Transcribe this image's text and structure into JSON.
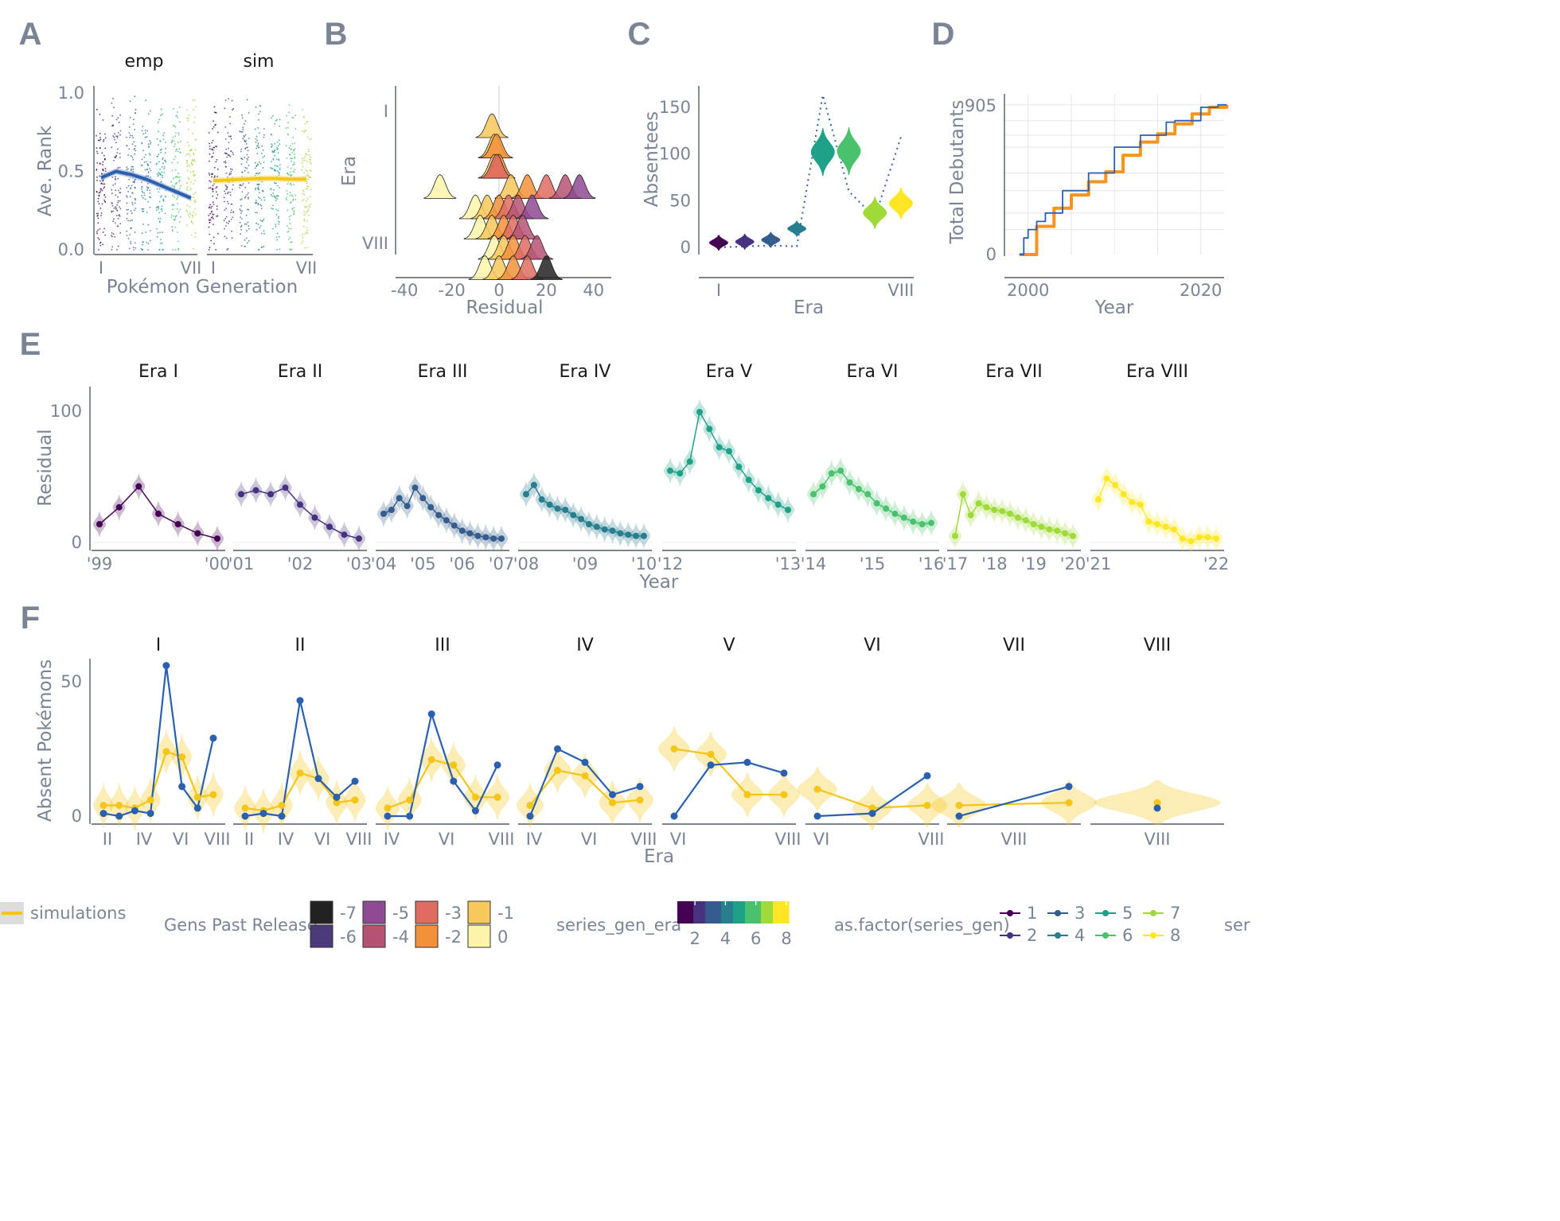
{
  "panels": {
    "A": "A",
    "B": "B",
    "C": "C",
    "D": "D",
    "E": "E",
    "F": "F"
  },
  "colors": {
    "era": [
      "#440154",
      "#46327e",
      "#365c8d",
      "#277f8e",
      "#1fa187",
      "#4ac16d",
      "#a0da39",
      "#fde725"
    ],
    "empirical": "#2b5fb0",
    "simulation": "#f5c518",
    "cumulative_sim": "#f7941d",
    "gens_past": [
      "#222222",
      "#4b3a7a",
      "#8e4a93",
      "#b65374",
      "#df6b61",
      "#f3913b",
      "#f7c85a",
      "#fbf4aa"
    ]
  },
  "chart_data": [
    {
      "panel": "A",
      "type": "scatter",
      "facets": [
        "emp",
        "sim"
      ],
      "xlabel": "Pokémon Generation",
      "ylabel": "Ave. Rank",
      "x_ticks": [
        "I",
        "VII"
      ],
      "y_ticks": [
        "0.0",
        "0.5",
        "1.0"
      ],
      "ylim": [
        0,
        1
      ],
      "series": [
        {
          "facet": "emp",
          "x": [
            1,
            2,
            3,
            4,
            5,
            6,
            7
          ],
          "values": [
            0.46,
            0.5,
            0.48,
            0.45,
            0.41,
            0.37,
            0.33
          ]
        },
        {
          "facet": "sim",
          "x": [
            1,
            2,
            3,
            4,
            5,
            6,
            7
          ],
          "values": [
            0.44,
            0.445,
            0.45,
            0.455,
            0.455,
            0.45,
            0.45
          ]
        }
      ]
    },
    {
      "panel": "B",
      "type": "ridgeline",
      "xlabel": "Residual",
      "ylabel": "Era",
      "x_ticks": [
        "-40",
        "-20",
        "0",
        "20",
        "40"
      ],
      "y_ticks": [
        "I",
        "VIII"
      ],
      "xlim": [
        -45,
        45
      ],
      "rows": [
        {
          "era": 1,
          "peaks": [
            [
              -3,
              -1
            ]
          ]
        },
        {
          "era": 2,
          "peaks": [
            [
              -2,
              -1
            ],
            [
              -1,
              -2
            ]
          ]
        },
        {
          "era": 3,
          "peaks": [
            [
              -2,
              -1
            ],
            [
              0,
              -2
            ],
            [
              -1,
              -3
            ]
          ]
        },
        {
          "era": 4,
          "peaks": [
            [
              -25,
              0
            ],
            [
              5,
              -1
            ],
            [
              12,
              -2
            ],
            [
              20,
              -3
            ],
            [
              28,
              -4
            ],
            [
              34,
              -5
            ]
          ]
        },
        {
          "era": 5,
          "peaks": [
            [
              -10,
              0
            ],
            [
              -5,
              -1
            ],
            [
              0,
              -2
            ],
            [
              4,
              -3
            ],
            [
              8,
              -4
            ],
            [
              14,
              -5
            ]
          ]
        },
        {
          "era": 6,
          "peaks": [
            [
              -8,
              0
            ],
            [
              -3,
              -1
            ],
            [
              2,
              -2
            ],
            [
              6,
              -3
            ],
            [
              10,
              -4
            ]
          ]
        },
        {
          "era": 7,
          "peaks": [
            [
              -2,
              0
            ],
            [
              2,
              -1
            ],
            [
              6,
              -2
            ],
            [
              11,
              -3
            ],
            [
              16,
              -4
            ]
          ]
        },
        {
          "era": 8,
          "peaks": [
            [
              -6,
              0
            ],
            [
              0,
              -1
            ],
            [
              6,
              -2
            ],
            [
              12,
              -3
            ],
            [
              20,
              -7
            ]
          ]
        }
      ]
    },
    {
      "panel": "C",
      "type": "violin",
      "xlabel": "Era",
      "ylabel": "Absentees",
      "x_ticks": [
        "I",
        "VIII"
      ],
      "y_ticks": [
        "0",
        "50",
        "100",
        "150"
      ],
      "ylim": [
        0,
        165
      ],
      "categories": [
        1,
        2,
        3,
        4,
        5,
        6,
        7,
        8
      ],
      "sim_medians": [
        5,
        6,
        8,
        20,
        102,
        103,
        37,
        47
      ],
      "empirical": [
        0,
        1,
        2,
        1,
        163,
        60,
        32,
        118
      ]
    },
    {
      "panel": "D",
      "type": "step",
      "xlabel": "Year",
      "ylabel": "Total Debutants",
      "x_ticks": [
        "2000",
        "2020"
      ],
      "y_ticks": [
        "0",
        "905"
      ],
      "xlim": [
        1998,
        2023
      ],
      "ylim": [
        0,
        905
      ],
      "series": [
        {
          "name": "empirical",
          "x": [
            1999,
            1999.5,
            2000,
            2001,
            2002,
            2004,
            2006,
            2007,
            2009,
            2010,
            2012,
            2013,
            2015,
            2016,
            2017,
            2019,
            2020,
            2022,
            2023
          ],
          "values": [
            0,
            100,
            151,
            200,
            251,
            386,
            386,
            493,
            493,
            649,
            649,
            721,
            721,
            800,
            809,
            809,
            890,
            905,
            905
          ]
        },
        {
          "name": "simulation",
          "x": [
            1999,
            2001,
            2003,
            2005,
            2007,
            2009,
            2011,
            2013,
            2015,
            2017,
            2019,
            2021,
            2023
          ],
          "values": [
            0,
            170,
            280,
            360,
            440,
            500,
            600,
            680,
            730,
            790,
            850,
            890,
            905
          ]
        }
      ]
    },
    {
      "panel": "E",
      "type": "line",
      "xlabel": "Year",
      "ylabel": "Residual",
      "y_ticks": [
        "0",
        "100"
      ],
      "ylim": [
        -5,
        120
      ],
      "facets": [
        "Era I",
        "Era II",
        "Era III",
        "Era IV",
        "Era V",
        "Era VI",
        "Era VII",
        "Era VIII"
      ],
      "facet_xticks": [
        [
          "'99",
          "'00"
        ],
        [
          "'01",
          "'02",
          "'03"
        ],
        [
          "'04",
          "'05",
          "'06",
          "'07"
        ],
        [
          "'08",
          "'09",
          "'10"
        ],
        [
          "'12",
          "'13"
        ],
        [
          "'14",
          "'15",
          "'16"
        ],
        [
          "'17",
          "'18",
          "'19",
          "'20"
        ],
        [
          "'21",
          "'22"
        ]
      ],
      "series": [
        {
          "values": [
            14,
            27,
            43,
            22,
            14,
            7,
            3
          ]
        },
        {
          "values": [
            37,
            40,
            37,
            42,
            29,
            19,
            12,
            6,
            3
          ]
        },
        {
          "values": [
            22,
            25,
            34,
            28,
            42,
            34,
            27,
            21,
            17,
            13,
            9,
            7,
            5,
            4,
            3,
            3
          ]
        },
        {
          "values": [
            37,
            44,
            33,
            29,
            26,
            25,
            21,
            18,
            14,
            12,
            10,
            9,
            7,
            6,
            5,
            5
          ]
        },
        {
          "values": [
            55,
            53,
            62,
            100,
            87,
            73,
            70,
            58,
            48,
            40,
            34,
            29,
            25
          ]
        },
        {
          "values": [
            37,
            43,
            53,
            55,
            46,
            41,
            37,
            30,
            26,
            22,
            19,
            16,
            14,
            15
          ]
        },
        {
          "values": [
            5,
            37,
            21,
            30,
            27,
            25,
            24,
            22,
            19,
            17,
            14,
            12,
            10,
            9,
            7,
            5
          ]
        },
        {
          "values": [
            33,
            49,
            44,
            37,
            31,
            29,
            16,
            14,
            12,
            10,
            3,
            1,
            4,
            4,
            3
          ]
        }
      ]
    },
    {
      "panel": "F",
      "type": "line",
      "xlabel": "Era",
      "ylabel": "Absent Pokémons",
      "y_ticks": [
        "0",
        "50"
      ],
      "ylim": [
        -3,
        60
      ],
      "facets": [
        "I",
        "II",
        "III",
        "IV",
        "V",
        "VI",
        "VII",
        "VIII"
      ],
      "facet_xticks": [
        [
          "II",
          "IV",
          "VI",
          "VIII"
        ],
        [
          "II",
          "IV",
          "VI",
          "VIII"
        ],
        [
          "IV",
          "VI",
          "VIII"
        ],
        [
          "IV",
          "VI",
          "VIII"
        ],
        [
          "VI",
          "VIII"
        ],
        [
          "VI",
          "VIII"
        ],
        [
          "VIII"
        ],
        [
          "VIII"
        ]
      ],
      "series": [
        {
          "facet": "I",
          "empirical": [
            1,
            0,
            2,
            1,
            56,
            11,
            3,
            29
          ],
          "simulation": [
            4,
            4,
            3,
            6,
            24,
            22,
            7,
            8
          ]
        },
        {
          "facet": "II",
          "empirical": [
            0,
            1,
            0,
            43,
            14,
            7,
            13
          ],
          "simulation": [
            3,
            2,
            4,
            16,
            14,
            5,
            6
          ]
        },
        {
          "facet": "III",
          "empirical": [
            0,
            0,
            38,
            13,
            2,
            19
          ],
          "simulation": [
            3,
            6,
            21,
            19,
            7,
            7
          ]
        },
        {
          "facet": "IV",
          "empirical": [
            0,
            25,
            20,
            8,
            11
          ],
          "simulation": [
            4,
            17,
            15,
            5,
            6
          ]
        },
        {
          "facet": "V",
          "empirical": [
            0,
            19,
            20,
            16
          ],
          "simulation": [
            25,
            23,
            8,
            8
          ]
        },
        {
          "facet": "VI",
          "empirical": [
            0,
            1,
            15
          ],
          "simulation": [
            10,
            3,
            4
          ]
        },
        {
          "facet": "VII",
          "empirical": [
            0,
            11
          ],
          "simulation": [
            4,
            5
          ]
        },
        {
          "facet": "VIII",
          "empirical": [
            3
          ],
          "simulation": [
            5
          ]
        }
      ]
    }
  ],
  "legend": {
    "simulations_label": "simulations",
    "gens_past_title": "Gens Past Release",
    "gens_past_items": [
      "-7",
      "-6",
      "-5",
      "-4",
      "-3",
      "-2",
      "-1",
      "0"
    ],
    "series_gen_era_title": "series_gen_era",
    "series_gen_era_ticks": [
      "2",
      "4",
      "6",
      "8"
    ],
    "factor_title": "as.factor(series_gen)",
    "factor_items": [
      "1",
      "2",
      "3",
      "4",
      "5",
      "6",
      "7",
      "8"
    ],
    "cut_off_label": "ser"
  }
}
